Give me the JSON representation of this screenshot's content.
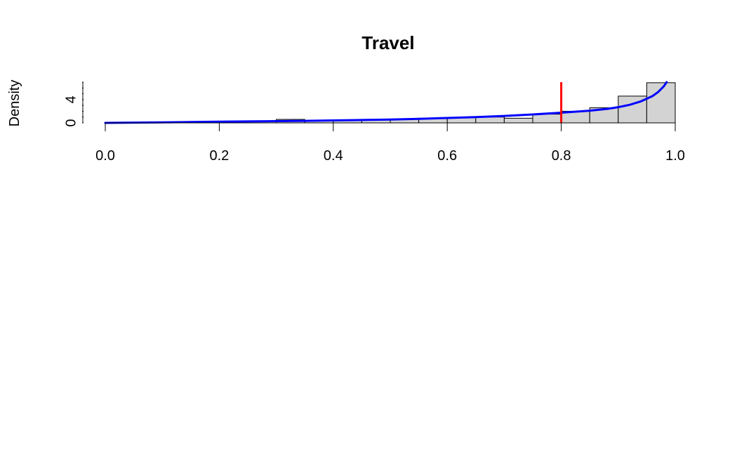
{
  "chart_data": {
    "type": "bar",
    "title": "Travel",
    "xlabel": "",
    "ylabel": "Density",
    "xlim": [
      0,
      1
    ],
    "ylim": [
      0,
      7
    ],
    "x_ticks": [
      "0.0",
      "0.2",
      "0.4",
      "0.6",
      "0.8",
      "1.0"
    ],
    "y_ticks": [
      "0",
      "4"
    ],
    "y_minor_ticks": [
      0,
      1,
      2,
      3,
      4,
      5,
      6,
      7
    ],
    "bins": [
      {
        "start": 0.0,
        "end": 0.05,
        "density": 0.1
      },
      {
        "start": 0.05,
        "end": 0.1,
        "density": 0.1
      },
      {
        "start": 0.1,
        "end": 0.15,
        "density": 0.1
      },
      {
        "start": 0.15,
        "end": 0.2,
        "density": 0.2
      },
      {
        "start": 0.2,
        "end": 0.25,
        "density": 0.2
      },
      {
        "start": 0.25,
        "end": 0.3,
        "density": 0.3
      },
      {
        "start": 0.3,
        "end": 0.35,
        "density": 0.6
      },
      {
        "start": 0.35,
        "end": 0.4,
        "density": 0.4
      },
      {
        "start": 0.4,
        "end": 0.45,
        "density": 0.5
      },
      {
        "start": 0.45,
        "end": 0.5,
        "density": 0.5
      },
      {
        "start": 0.5,
        "end": 0.55,
        "density": 0.6
      },
      {
        "start": 0.55,
        "end": 0.6,
        "density": 0.8
      },
      {
        "start": 0.6,
        "end": 0.65,
        "density": 0.9
      },
      {
        "start": 0.65,
        "end": 0.7,
        "density": 1.0
      },
      {
        "start": 0.7,
        "end": 0.75,
        "density": 0.8
      },
      {
        "start": 0.75,
        "end": 0.8,
        "density": 1.5
      },
      {
        "start": 0.8,
        "end": 0.85,
        "density": 2.0
      },
      {
        "start": 0.85,
        "end": 0.9,
        "density": 2.6
      },
      {
        "start": 0.9,
        "end": 0.95,
        "density": 4.6
      },
      {
        "start": 0.95,
        "end": 1.0,
        "density": 6.9
      }
    ],
    "density_curve": {
      "x": [
        0.0,
        0.05,
        0.1,
        0.15,
        0.2,
        0.25,
        0.3,
        0.35,
        0.4,
        0.45,
        0.5,
        0.55,
        0.6,
        0.65,
        0.7,
        0.75,
        0.8,
        0.85,
        0.88,
        0.9,
        0.92,
        0.94,
        0.96,
        0.97,
        0.98,
        0.985
      ],
      "y": [
        0.0,
        0.05,
        0.1,
        0.15,
        0.2,
        0.25,
        0.3,
        0.35,
        0.42,
        0.5,
        0.58,
        0.7,
        0.85,
        1.0,
        1.2,
        1.45,
        1.75,
        2.1,
        2.4,
        2.7,
        3.1,
        3.7,
        4.6,
        5.3,
        6.3,
        7.0
      ],
      "color": "#0000ff"
    },
    "reference_line": {
      "x": 0.8,
      "color": "#ff0000"
    },
    "bar_fill": "#d3d3d3",
    "bar_stroke": "#000000",
    "grid": false,
    "legend": "none"
  }
}
